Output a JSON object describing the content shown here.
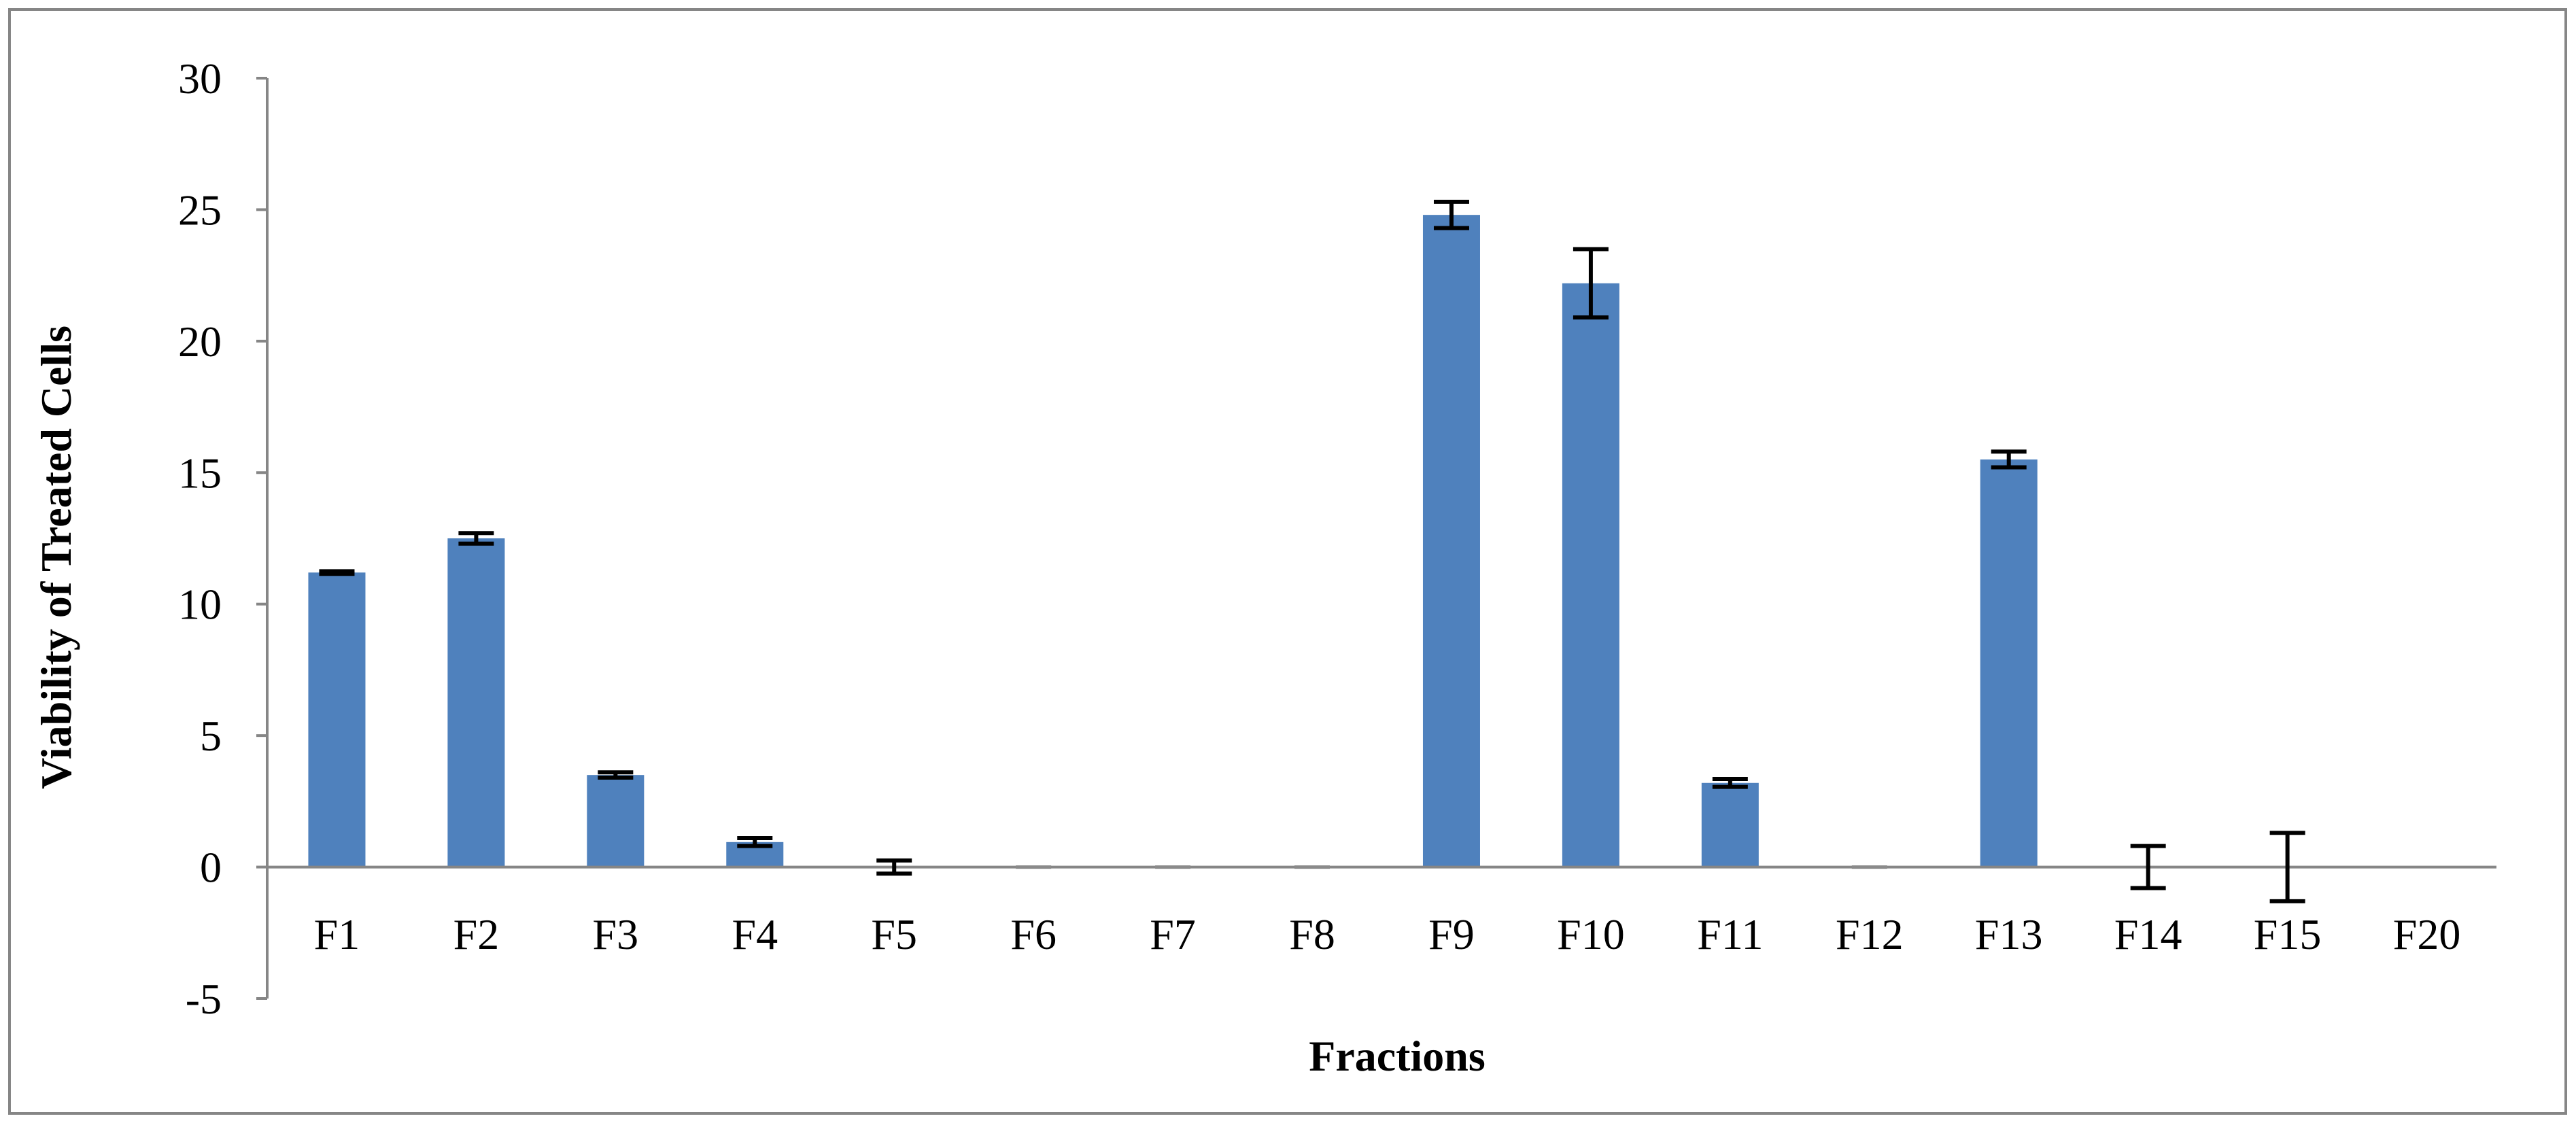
{
  "chart_data": {
    "type": "bar",
    "title": "",
    "xlabel": "Fractions",
    "ylabel": "Viability of Treated Cells",
    "ylim": [
      -5,
      30
    ],
    "yticks": [
      30,
      25,
      20,
      15,
      10,
      5,
      0,
      -5
    ],
    "grid": false,
    "legend": "none",
    "categories": [
      "F1",
      "F2",
      "F3",
      "F4",
      "F5",
      "F6",
      "F7",
      "F8",
      "F9",
      "F10",
      "F11",
      "F12",
      "F13",
      "F14",
      "F15",
      "F20"
    ],
    "values": [
      11.2,
      12.5,
      3.5,
      0.95,
      0,
      0,
      0,
      0,
      24.8,
      22.2,
      3.2,
      0,
      15.5,
      0,
      0,
      0
    ],
    "errors": [
      0.05,
      0.2,
      0.1,
      0.15,
      0.25,
      0,
      0,
      0,
      0.5,
      1.3,
      0.15,
      0,
      0.3,
      0.8,
      1.3,
      0
    ],
    "colors": {
      "bar": "#4f81bd",
      "error_bar": "#000000",
      "axis": "#868686",
      "frame": "#868686"
    }
  }
}
